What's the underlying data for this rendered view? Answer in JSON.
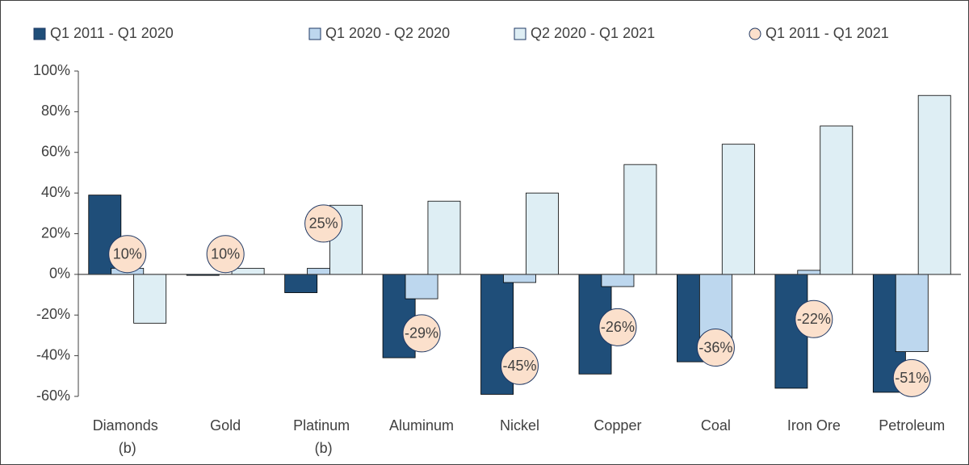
{
  "chart_data": {
    "type": "bar",
    "categories": [
      "Diamonds (b)",
      "Gold",
      "Platinum (b)",
      "Aluminum",
      "Nickel",
      "Copper",
      "Coal",
      "Iron Ore",
      "Petroleum"
    ],
    "series": [
      {
        "name": "Q1 2011 - Q1 2020",
        "color": "#1f4e79",
        "values": [
          39,
          -0.5,
          -9,
          -41,
          -59,
          -49,
          -43,
          -56,
          -58
        ]
      },
      {
        "name": "Q1 2020 - Q2 2020",
        "color": "#bdd7ee",
        "values": [
          3,
          0,
          3,
          -12,
          -4,
          -6,
          -35,
          2,
          -38
        ]
      },
      {
        "name": "Q2 2020 - Q1 2021",
        "color": "#deeef4",
        "values": [
          -24,
          3,
          34,
          36,
          40,
          54,
          64,
          73,
          88
        ]
      },
      {
        "name": "Q1 2011 - Q1 2021",
        "color": "#fbe0cc",
        "type": "marker",
        "values": [
          10,
          10,
          25,
          -29,
          -45,
          -26,
          -36,
          -22,
          -51
        ],
        "value_labels": [
          "10%",
          "10%",
          "25%",
          "-29%",
          "-45%",
          "-26%",
          "-36%",
          "-22%",
          "-51%"
        ]
      }
    ],
    "ylim": [
      -60,
      100
    ],
    "yticks": [
      {
        "value": -60,
        "label": "-60%"
      },
      {
        "value": -40,
        "label": "-40%"
      },
      {
        "value": -20,
        "label": "-20%"
      },
      {
        "value": 0,
        "label": "0%"
      },
      {
        "value": 20,
        "label": "20%"
      },
      {
        "value": 40,
        "label": "40%"
      },
      {
        "value": 60,
        "label": "60%"
      },
      {
        "value": 80,
        "label": "80%"
      },
      {
        "value": 100,
        "label": "100%"
      }
    ],
    "grid": false,
    "legend": "top"
  }
}
